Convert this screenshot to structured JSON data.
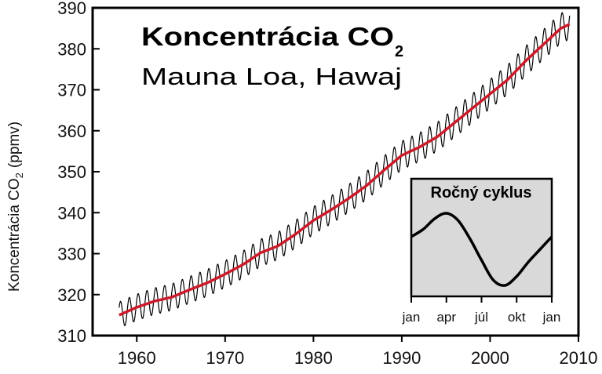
{
  "chart_data": [
    {
      "type": "line",
      "title": "Koncentrácia CO",
      "title_subscript": "2",
      "subtitle": "Mauna Loa, Hawaj",
      "ylabel": "Koncentrácia CO",
      "ylabel_subscript": "2",
      "ylabel_unit": "(ppmv)",
      "xlim": [
        1955,
        2010
      ],
      "ylim": [
        310,
        390
      ],
      "x_ticks": [
        1960,
        1970,
        1980,
        1990,
        2000,
        2010
      ],
      "y_ticks": [
        310,
        320,
        330,
        340,
        350,
        360,
        370,
        380,
        390
      ],
      "grid": false,
      "series": [
        {
          "role": "trend",
          "color": "#cc1b2a",
          "x": [
            1958,
            1960,
            1962,
            1964,
            1966,
            1968,
            1970,
            1972,
            1974,
            1976,
            1978,
            1980,
            1982,
            1984,
            1986,
            1988,
            1990,
            1992,
            1994,
            1996,
            1998,
            2000,
            2002,
            2004,
            2006,
            2008,
            2009
          ],
          "y": [
            315,
            316.9,
            318.4,
            319.4,
            321.2,
            322.9,
            325.0,
            327.3,
            330.2,
            331.9,
            334.8,
            338.1,
            340.7,
            343.5,
            346.6,
            350.4,
            354.0,
            356.0,
            358.5,
            362.0,
            365.5,
            369.0,
            372.5,
            377.0,
            381.0,
            385.0,
            386.0
          ]
        },
        {
          "role": "monthly",
          "color": "#000000",
          "seasonal_amplitude_ppmv": 3.2,
          "cycles_per_year": 1,
          "x_start": 1958,
          "x_end": 2009
        }
      ]
    },
    {
      "type": "line",
      "inset": true,
      "title": "Ročný cyklus",
      "x_ticks": [
        "jan",
        "apr",
        "júl",
        "okt",
        "jan"
      ],
      "background": "#d9d9d9",
      "series": [
        {
          "color": "#000000",
          "x": [
            0,
            1,
            2,
            3,
            4,
            5,
            6,
            7,
            8,
            9,
            10,
            11,
            12
          ],
          "y": [
            0.35,
            0.55,
            0.85,
            1.0,
            0.8,
            0.3,
            -0.3,
            -0.85,
            -1.0,
            -0.75,
            -0.35,
            0.0,
            0.35
          ]
        }
      ]
    }
  ]
}
